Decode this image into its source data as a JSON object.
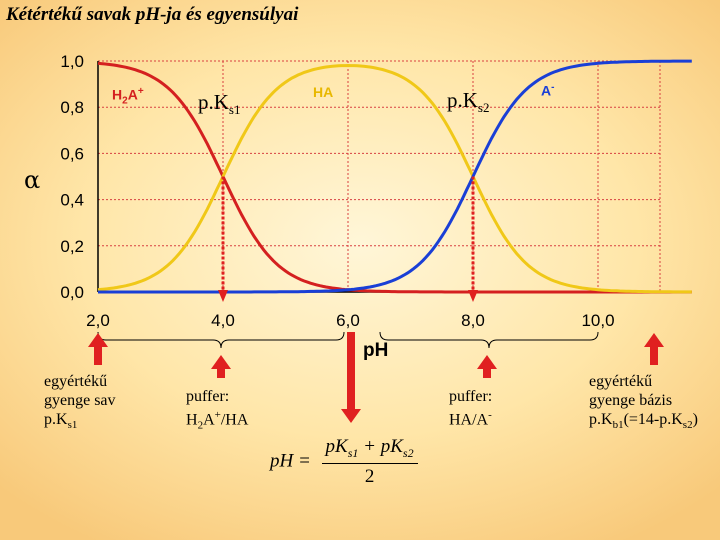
{
  "slide": {
    "title": "Kétértékű savak pH-ja és egyensúlyai",
    "alpha_symbol": "α",
    "x_axis_title": "pH"
  },
  "colors": {
    "h2a": "#d42020",
    "ha": "#f0c818",
    "a": "#1a3fd6",
    "arrow": "#e02020",
    "grid": "#d84040"
  },
  "chart_data": {
    "type": "line",
    "ylabel": "α",
    "xlabel": "pH",
    "xlim": [
      1.8,
      11.5
    ],
    "ylim": [
      0,
      1.0
    ],
    "x_ticks": [
      "2,0",
      "4,0",
      "6,0",
      "8,0",
      "10,0"
    ],
    "x_tick_values": [
      2,
      4,
      6,
      8,
      10
    ],
    "y_ticks": [
      "0,0",
      "0,2",
      "0,4",
      "0,6",
      "0,8",
      "1,0"
    ],
    "y_tick_values": [
      0,
      0.2,
      0.4,
      0.6,
      0.8,
      1.0
    ],
    "pKs1": 4.0,
    "pKs2": 8.0,
    "x": [
      2.0,
      3.0,
      3.5,
      4.0,
      4.5,
      5.0,
      6.0,
      7.0,
      7.5,
      8.0,
      8.5,
      9.0,
      10.0,
      11.0
    ],
    "series": [
      {
        "name": "H2A+",
        "values": [
          0.99,
          0.91,
          0.76,
          0.5,
          0.24,
          0.09,
          0.01,
          0.0,
          0.0,
          0.0,
          0.0,
          0.0,
          0.0,
          0.0
        ]
      },
      {
        "name": "HA",
        "values": [
          0.01,
          0.09,
          0.24,
          0.5,
          0.76,
          0.91,
          0.98,
          0.91,
          0.76,
          0.5,
          0.24,
          0.09,
          0.01,
          0.0
        ]
      },
      {
        "name": "A-",
        "values": [
          0.0,
          0.0,
          0.0,
          0.0,
          0.0,
          0.0,
          0.01,
          0.09,
          0.24,
          0.5,
          0.76,
          0.91,
          0.99,
          1.0
        ]
      }
    ]
  },
  "labels": {
    "h2a_main": "H",
    "h2a_sub": "2",
    "h2a_rest": "A",
    "h2a_sup": "+",
    "ha": "HA",
    "a_main": "A",
    "a_sup": "-",
    "pk1_main": "p.K",
    "pk1_sub": "s1",
    "pk2_main": "p.K",
    "pk2_sub": "s2"
  },
  "annotations": {
    "weak_acid_line1": "egyértékű",
    "weak_acid_line2": "gyenge sav",
    "weak_acid_line3_main": "p.K",
    "weak_acid_line3_sub": "s1",
    "buffer1_line1": "puffer:",
    "buffer1_h": "H",
    "buffer1_sub": "2",
    "buffer1_a": "A",
    "buffer1_sup": "+",
    "buffer1_rest": "/HA",
    "buffer2_line1": "puffer:",
    "buffer2_main": "HA/A",
    "buffer2_sup": "-",
    "weak_base_line1": "egyértékű",
    "weak_base_line2": "gyenge bázis",
    "weak_base_line3_main": "p.K",
    "weak_base_line3_sub": "b1",
    "weak_base_line3_mid": "(=14-p.K",
    "weak_base_line3_sub2": "s2",
    "weak_base_line3_end": ")"
  },
  "formula": {
    "lhs": "pH =",
    "num_a": "pK",
    "num_a_sub": "s1",
    "plus": " + ",
    "num_b": "pK",
    "num_b_sub": "s2",
    "den": "2"
  }
}
